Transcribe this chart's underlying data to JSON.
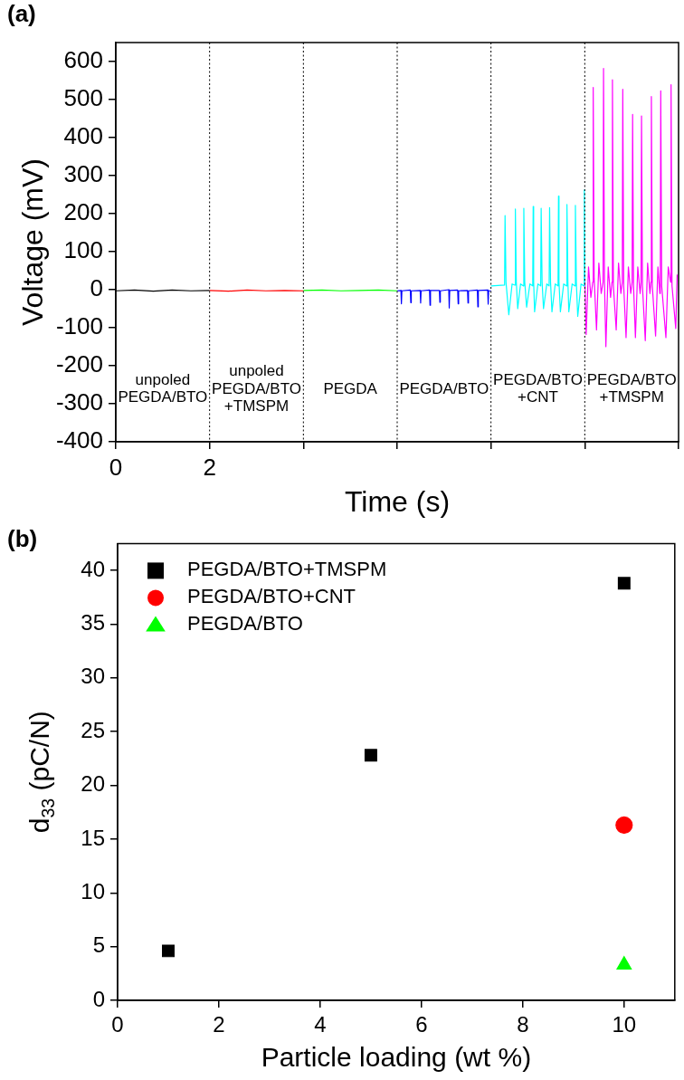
{
  "chart_data": [
    {
      "type": "line",
      "title": "(a)",
      "xlabel": "Time (s)",
      "ylabel": "Voltage (mV)",
      "xlim": [
        0,
        12
      ],
      "ylim": [
        -400,
        650
      ],
      "xticks": [
        0,
        2,
        {
          "value": 4,
          "label": null
        },
        {
          "value": 6,
          "label": null
        },
        {
          "value": 8,
          "label": null
        },
        {
          "value": 10,
          "label": null
        },
        {
          "value": 12,
          "label": null
        }
      ],
      "yticks": [
        -400,
        -300,
        -200,
        -100,
        0,
        100,
        200,
        300,
        400,
        500,
        600
      ],
      "grid": false,
      "legend": false,
      "marker": "none",
      "line_style": "solid",
      "ref_lines": [
        {
          "axis": "x",
          "value": 2,
          "line_style": "dotted",
          "color": "#000000"
        },
        {
          "axis": "x",
          "value": 4,
          "line_style": "dotted",
          "color": "#000000"
        },
        {
          "axis": "x",
          "value": 6,
          "line_style": "dotted",
          "color": "#000000"
        },
        {
          "axis": "x",
          "value": 8,
          "line_style": "dotted",
          "color": "#000000"
        },
        {
          "axis": "x",
          "value": 10,
          "line_style": "dotted",
          "color": "#000000"
        }
      ],
      "annotations": [
        "unpoled\nPEGDA/BTO",
        "unpoled\nPEGDA/BTO\n+TMSPM",
        "PEGDA",
        "PEGDA/BTO",
        "PEGDA/BTO\n+CNT",
        "PEGDA/BTO\n+TMSPM"
      ],
      "series": [
        {
          "color": "#000000",
          "x": [
            0,
            0.4,
            0.8,
            1.2,
            1.6,
            2
          ],
          "values": [
            -3,
            -1,
            -4,
            -1,
            -3,
            -2
          ]
        },
        {
          "color": "#ff0000",
          "x": [
            2,
            2.4,
            2.8,
            3.2,
            3.6,
            4
          ],
          "values": [
            -2,
            -4,
            -1,
            -3,
            -2,
            -3
          ]
        },
        {
          "color": "#00ff00",
          "x": [
            4,
            4.4,
            4.8,
            5.2,
            5.6,
            6
          ],
          "values": [
            -2,
            -1,
            -3,
            -2,
            -1,
            -3
          ]
        },
        {
          "color": "#0000ff",
          "x": [
            6,
            6.08,
            6.09,
            6.1,
            6.28,
            6.29,
            6.3,
            6.49,
            6.5,
            6.51,
            6.69,
            6.7,
            6.71,
            6.9,
            6.91,
            6.92,
            7.1,
            7.11,
            7.12,
            7.29,
            7.3,
            7.31,
            7.5,
            7.51,
            7.52,
            7.71,
            7.72,
            7.73,
            7.93,
            7.94,
            7.95,
            8
          ],
          "values": [
            -3,
            -2,
            -37,
            -3,
            -1,
            -34,
            -3,
            -2,
            -35,
            -3,
            -1,
            -41,
            -2,
            -2,
            -33,
            -3,
            0,
            -48,
            -2,
            -1,
            -37,
            -3,
            -2,
            -35,
            -3,
            -1,
            -45,
            -2,
            -1,
            -38,
            -3,
            -3
          ]
        },
        {
          "color": "#00ffff",
          "x": [
            8,
            8.29,
            8.3,
            8.32,
            8.38,
            8.45,
            8.51,
            8.52,
            8.54,
            8.57,
            8.63,
            8.69,
            8.7,
            8.72,
            8.76,
            8.83,
            8.89,
            8.9,
            8.91,
            8.93,
            9,
            9.06,
            9.07,
            9.09,
            9.12,
            9.19,
            9.24,
            9.25,
            9.27,
            9.3,
            9.37,
            9.43,
            9.44,
            9.45,
            9.48,
            9.55,
            9.61,
            9.62,
            9.64,
            9.66,
            9.73,
            9.79,
            9.8,
            9.82,
            9.85,
            9.92,
            9.98,
            9.99,
            10
          ],
          "values": [
            10,
            12,
            195,
            20,
            -66,
            15,
            12,
            212,
            20,
            -50,
            15,
            10,
            214,
            20,
            -46,
            15,
            10,
            219,
            20,
            -58,
            15,
            10,
            214,
            20,
            -50,
            15,
            10,
            216,
            20,
            -58,
            15,
            10,
            246,
            20,
            -58,
            15,
            10,
            224,
            20,
            -58,
            15,
            10,
            222,
            20,
            -70,
            15,
            10,
            262,
            20
          ]
        },
        {
          "color": "#ff00ff",
          "x": [
            10,
            10.03,
            10.08,
            10.13,
            10.17,
            10.18,
            10.2,
            10.25,
            10.3,
            10.35,
            10.39,
            10.4,
            10.42,
            10.45,
            10.5,
            10.55,
            10.58,
            10.59,
            10.61,
            10.67,
            10.72,
            10.77,
            10.8,
            10.81,
            10.83,
            10.88,
            10.93,
            10.98,
            11.01,
            11.02,
            11.04,
            11.08,
            11.13,
            11.18,
            11.2,
            11.21,
            11.23,
            11.29,
            11.34,
            11.39,
            11.41,
            11.42,
            11.44,
            11.51,
            11.56,
            11.6,
            11.61,
            11.62,
            11.64,
            11.73,
            11.78,
            11.83,
            11.84,
            11.86,
            11.94,
            11.97
          ],
          "values": [
            40,
            -118,
            60,
            -20,
            20,
            532,
            30,
            -106,
            70,
            -10,
            20,
            582,
            20,
            -150,
            60,
            -20,
            20,
            552,
            10,
            -106,
            70,
            -10,
            20,
            527,
            10,
            -126,
            60,
            -10,
            20,
            461,
            10,
            -126,
            60,
            -10,
            20,
            457,
            10,
            -134,
            70,
            -10,
            20,
            508,
            10,
            -122,
            60,
            -10,
            20,
            523,
            10,
            -126,
            60,
            20,
            539,
            10,
            -102,
            40
          ]
        }
      ]
    },
    {
      "type": "scatter",
      "title": "(b)",
      "xlabel": "Particle loading (wt %)",
      "ylabel": "d$_{33}$ (pC/N)",
      "xlim": [
        0,
        11
      ],
      "ylim": [
        0,
        42.5
      ],
      "xticks": [
        0,
        2,
        4,
        6,
        8,
        10
      ],
      "yticks": [
        0,
        5,
        10,
        15,
        20,
        25,
        30,
        35,
        40
      ],
      "grid": false,
      "legend": "top left",
      "series": [
        {
          "name": "PEGDA/BTO+TMSPM",
          "color": "#000000",
          "marker": "square",
          "x": [
            1,
            5,
            10
          ],
          "values": [
            4.6,
            22.8,
            38.8
          ]
        },
        {
          "name": "PEGDA/BTO+CNT",
          "color": "#ff0000",
          "marker": "circle",
          "x": [
            10
          ],
          "values": [
            16.3
          ]
        },
        {
          "name": "PEGDA/BTO",
          "color": "#00ff00",
          "marker": "triangle",
          "x": [
            10
          ],
          "values": [
            3.3
          ]
        }
      ]
    }
  ]
}
